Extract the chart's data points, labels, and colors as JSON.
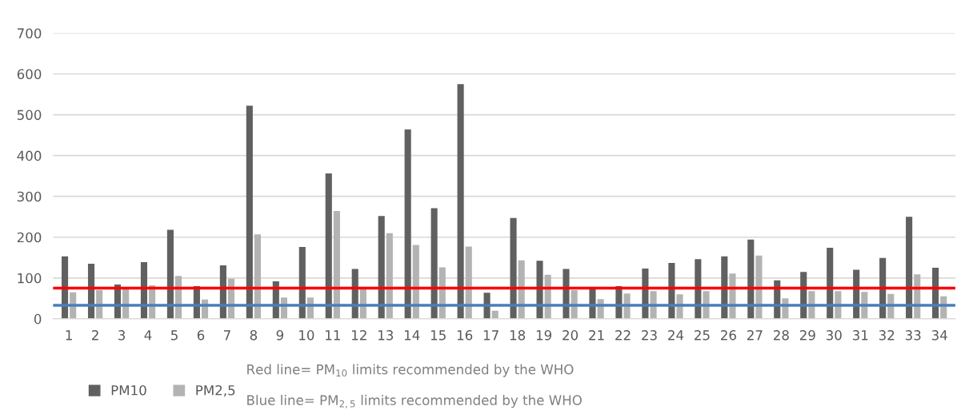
{
  "chart_data": {
    "type": "bar",
    "categories": [
      "1",
      "2",
      "3",
      "4",
      "5",
      "6",
      "7",
      "8",
      "9",
      "10",
      "11",
      "12",
      "13",
      "14",
      "15",
      "16",
      "17",
      "18",
      "19",
      "20",
      "21",
      "22",
      "23",
      "24",
      "25",
      "26",
      "27",
      "28",
      "29",
      "30",
      "31",
      "32",
      "33",
      "34"
    ],
    "series": [
      {
        "name": "PM10",
        "color": "#606060",
        "values": [
          153,
          135,
          84,
          139,
          218,
          80,
          131,
          522,
          92,
          176,
          356,
          122,
          252,
          464,
          271,
          575,
          64,
          247,
          142,
          122,
          75,
          80,
          123,
          137,
          146,
          153,
          194,
          94,
          115,
          174,
          120,
          149,
          250,
          125
        ]
      },
      {
        "name": "PM2,5",
        "color": "#b3b3b3",
        "values": [
          65,
          70,
          75,
          82,
          105,
          47,
          98,
          207,
          52,
          52,
          264,
          75,
          210,
          181,
          126,
          177,
          20,
          143,
          108,
          70,
          48,
          62,
          68,
          60,
          68,
          111,
          155,
          50,
          68,
          68,
          66,
          61,
          109,
          55
        ]
      }
    ],
    "ylim": [
      0,
      700
    ],
    "yticks": [
      0,
      100,
      200,
      300,
      400,
      500,
      600,
      700
    ],
    "grid": "y",
    "legend": "bottom",
    "ref_lines": [
      {
        "axis": "y",
        "value": 75,
        "color": "#ff0000"
      },
      {
        "axis": "y",
        "value": 33,
        "color": "#4a7ebb"
      }
    ],
    "annotations": [
      "Red line= PM$_{10}$ limits recommended by the WHO",
      "Blue line= PM$_{2,5}$ limits recommended by the WHO"
    ]
  }
}
